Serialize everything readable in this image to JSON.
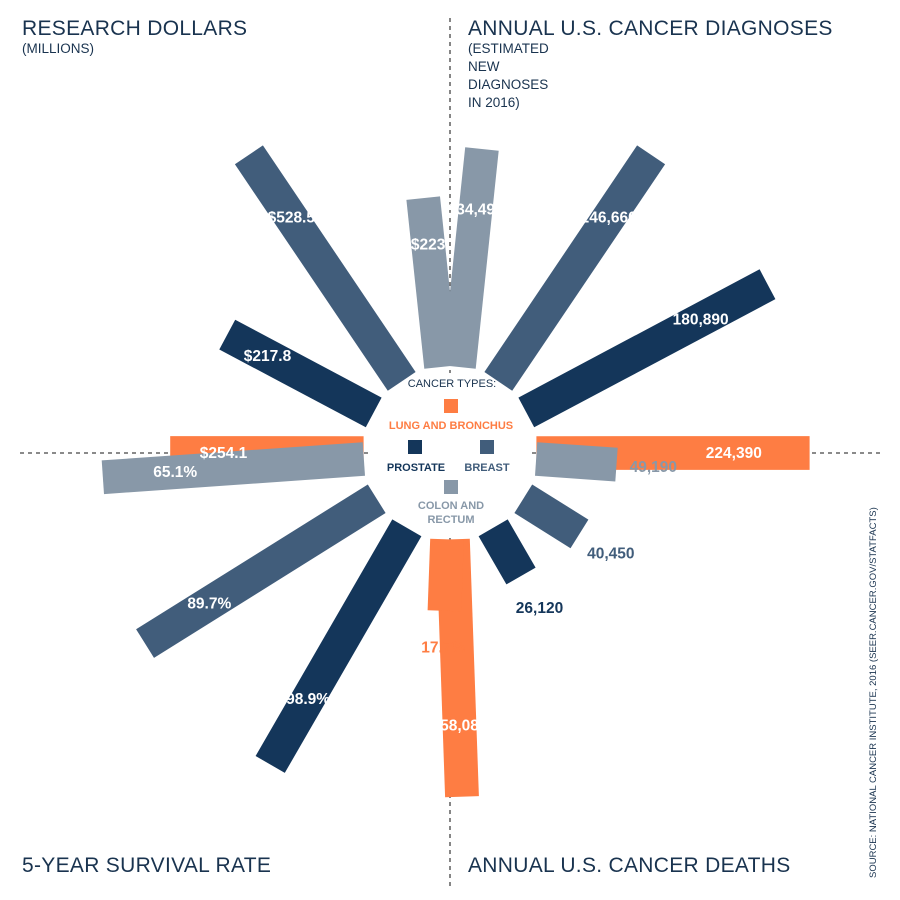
{
  "titles": {
    "research": "RESEARCH DOLLARS",
    "research_sub": "(MILLIONS)",
    "diagnoses": "ANNUAL U.S. CANCER DIAGNOSES",
    "diagnoses_sub": [
      "(ESTIMATED",
      "NEW",
      "DIAGNOSES",
      "IN 2016)"
    ],
    "survival": "5-YEAR SURVIVAL RATE",
    "deaths": "ANNUAL U.S. CANCER DEATHS"
  },
  "legend": {
    "title": "CANCER TYPES:",
    "lung": "LUNG AND BRONCHUS",
    "prostate": "PROSTATE",
    "breast": "BREAST",
    "colon_line1": "COLON AND",
    "colon_line2": "RECTUM"
  },
  "source": "SOURCE: NATIONAL CANCER INSTITUTE, 2016 (SEER.CANCER.GOV/STATFACTS)",
  "colors": {
    "lung": "#fe7d43",
    "prostate": "#14365a",
    "breast": "#415d7b",
    "colon": "#8898a8",
    "text_dark": "#19334f",
    "divider": "#444444"
  },
  "chart_data": [
    {
      "type": "bar",
      "title": "RESEARCH DOLLARS",
      "subtitle": "(MILLIONS)",
      "categories": [
        "Lung and Bronchus",
        "Prostate",
        "Breast",
        "Colon and Rectum"
      ],
      "values": [
        254.1,
        217.8,
        528.5,
        223
      ],
      "labels": [
        "$254.1",
        "$217.8",
        "$528.5",
        "$223"
      ]
    },
    {
      "type": "bar",
      "title": "ANNUAL U.S. CANCER DIAGNOSES",
      "subtitle": "(ESTIMATED NEW DIAGNOSES IN 2016)",
      "categories": [
        "Colon and Rectum",
        "Breast",
        "Prostate",
        "Lung and Bronchus"
      ],
      "values": [
        134490,
        246660,
        180890,
        224390
      ],
      "labels": [
        "134,490",
        "246,660",
        "180,890",
        "224,390"
      ]
    },
    {
      "type": "bar",
      "title": "ANNUAL U.S. CANCER DEATHS",
      "categories": [
        "Colon and Rectum",
        "Breast",
        "Prostate",
        "Lung and Bronchus"
      ],
      "values": [
        49190,
        40450,
        26120,
        158080
      ],
      "labels": [
        "49,190",
        "40,450",
        "26,120",
        "158,080"
      ]
    },
    {
      "type": "bar",
      "title": "5-YEAR SURVIVAL RATE",
      "categories": [
        "Lung and Bronchus",
        "Prostate",
        "Breast",
        "Colon and Rectum"
      ],
      "values": [
        17.7,
        98.9,
        89.7,
        65.1
      ],
      "labels": [
        "17.7%",
        "98.9%",
        "89.7%",
        "65.1%"
      ]
    }
  ]
}
